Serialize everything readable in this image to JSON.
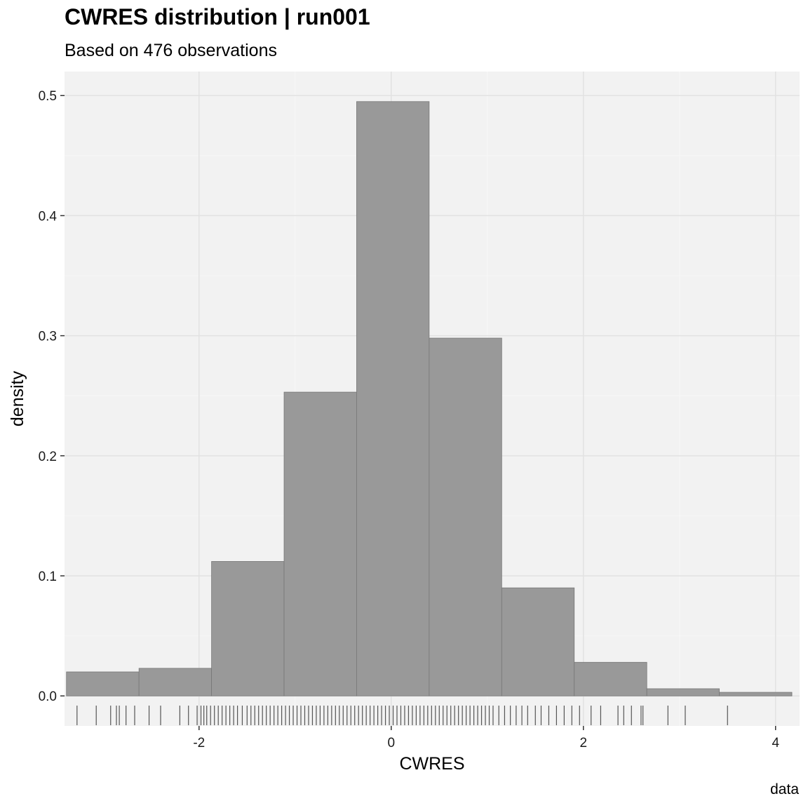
{
  "chart_data": {
    "type": "bar",
    "title": "CWRES distribution | run001",
    "subtitle": "Based on 476 observations",
    "xlabel": "CWRES",
    "ylabel": "density",
    "caption": "data",
    "xlim": [
      -3.4,
      4.25
    ],
    "ylim": [
      -0.025,
      0.52
    ],
    "x_ticks": [
      -2,
      0,
      2,
      4
    ],
    "x_tick_labels": [
      "-2",
      "0",
      "2",
      "4"
    ],
    "y_ticks": [
      0,
      0.1,
      0.2,
      0.3,
      0.4,
      0.5
    ],
    "y_tick_labels": [
      "0.0",
      "0.1",
      "0.2",
      "0.3",
      "0.4",
      "0.5"
    ],
    "grid": true,
    "bins": [
      {
        "x0": -3.38,
        "x1": -2.625,
        "density": 0.02
      },
      {
        "x0": -2.625,
        "x1": -1.87,
        "density": 0.023
      },
      {
        "x0": -1.87,
        "x1": -1.115,
        "density": 0.112
      },
      {
        "x0": -1.115,
        "x1": -0.36,
        "density": 0.253
      },
      {
        "x0": -0.36,
        "x1": 0.395,
        "density": 0.495
      },
      {
        "x0": 0.395,
        "x1": 1.15,
        "density": 0.298
      },
      {
        "x0": 1.15,
        "x1": 1.905,
        "density": 0.09
      },
      {
        "x0": 1.905,
        "x1": 2.66,
        "density": 0.028
      },
      {
        "x0": 2.66,
        "x1": 3.415,
        "density": 0.006
      },
      {
        "x0": 3.415,
        "x1": 4.17,
        "density": 0.003
      }
    ],
    "rug": [
      -3.27,
      -3.07,
      -2.92,
      -2.86,
      -2.83,
      -2.76,
      -2.67,
      -2.52,
      -2.4,
      -2.2,
      -2.11,
      -2.02,
      -1.98,
      -1.95,
      -1.92,
      -1.88,
      -1.84,
      -1.8,
      -1.76,
      -1.72,
      -1.68,
      -1.64,
      -1.6,
      -1.55,
      -1.5,
      -1.46,
      -1.42,
      -1.38,
      -1.34,
      -1.3,
      -1.26,
      -1.22,
      -1.18,
      -1.14,
      -1.1,
      -1.06,
      -1.02,
      -0.98,
      -0.94,
      -0.9,
      -0.86,
      -0.82,
      -0.78,
      -0.74,
      -0.7,
      -0.66,
      -0.62,
      -0.58,
      -0.54,
      -0.5,
      -0.46,
      -0.42,
      -0.38,
      -0.34,
      -0.3,
      -0.26,
      -0.22,
      -0.18,
      -0.14,
      -0.1,
      -0.06,
      -0.02,
      0.02,
      0.06,
      0.1,
      0.14,
      0.18,
      0.22,
      0.26,
      0.3,
      0.34,
      0.38,
      0.42,
      0.46,
      0.5,
      0.54,
      0.58,
      0.62,
      0.66,
      0.7,
      0.74,
      0.78,
      0.82,
      0.86,
      0.9,
      0.94,
      0.98,
      1.02,
      1.06,
      1.12,
      1.18,
      1.24,
      1.3,
      1.36,
      1.42,
      1.5,
      1.56,
      1.64,
      1.72,
      1.8,
      1.88,
      1.96,
      2.08,
      2.18,
      2.36,
      2.42,
      2.5,
      2.6,
      2.62,
      2.88,
      3.06,
      3.5
    ]
  }
}
